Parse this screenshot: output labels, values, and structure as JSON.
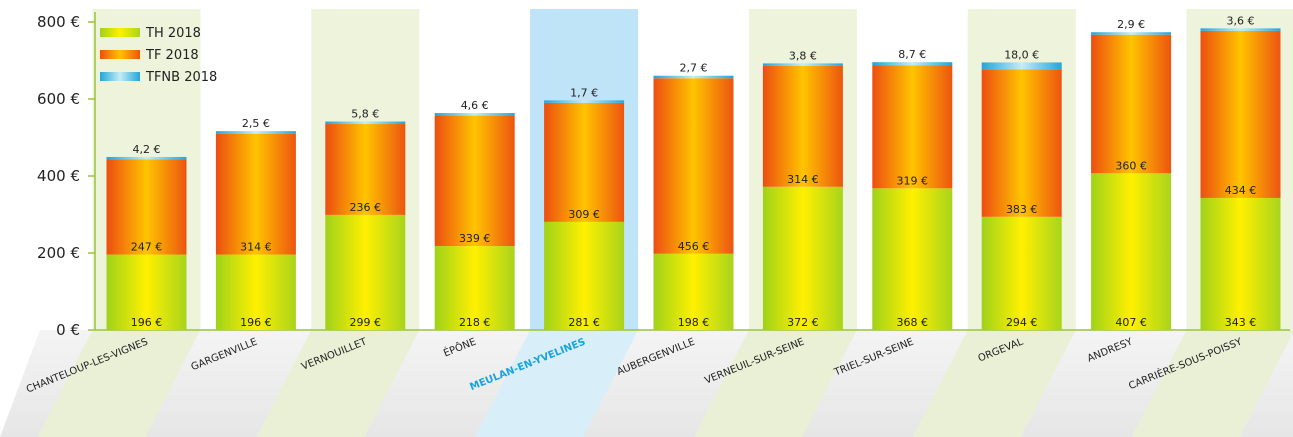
{
  "chart_data": {
    "type": "bar",
    "stacked": true,
    "categories": [
      "CHANTELOUP-LES-VIGNES",
      "GARGENVILLE",
      "VERNOUILLET",
      "ÉPÔNE",
      "MEULAN-EN-YVELINES",
      "AUBERGENVILLE",
      "VERNEUIL-SUR-SEINE",
      "TRIEL-SUR-SEINE",
      "ORGEVAL",
      "ANDRESY",
      "CARRIÈRE-SOUS-POISSY"
    ],
    "highlight_category": "MEULAN-EN-YVELINES",
    "series": [
      {
        "name": "TH 2018",
        "values": [
          196,
          196,
          299,
          218,
          281,
          198,
          372,
          368,
          294,
          407,
          343
        ],
        "labels": [
          "196 €",
          "196 €",
          "299 €",
          "218 €",
          "281 €",
          "198 €",
          "372 €",
          "368 €",
          "294 €",
          "407 €",
          "343 €"
        ]
      },
      {
        "name": "TF 2018",
        "values": [
          247,
          314,
          236,
          339,
          309,
          456,
          314,
          319,
          383,
          360,
          434
        ],
        "labels": [
          "247 €",
          "314 €",
          "236 €",
          "339 €",
          "309 €",
          "456 €",
          "314 €",
          "319 €",
          "383 €",
          "360 €",
          "434 €"
        ]
      },
      {
        "name": "TFNB 2018",
        "values": [
          4.2,
          2.5,
          5.8,
          4.6,
          1.7,
          2.7,
          3.8,
          8.7,
          18.0,
          2.9,
          3.6
        ],
        "labels": [
          "4,2 €",
          "2,5 €",
          "5,8 €",
          "4,6 €",
          "1,7 €",
          "2,7 €",
          "3,8 €",
          "8,7 €",
          "18,0 €",
          "2,9 €",
          "3,6 €"
        ]
      }
    ],
    "y_ticks": [
      0,
      200,
      400,
      600,
      800
    ],
    "y_tick_labels": [
      "0 €",
      "200 €",
      "400 €",
      "600 €",
      "800 €"
    ],
    "ylim": [
      0,
      830
    ],
    "legend_position": "top-left",
    "grid": false,
    "colors": {
      "th": [
        "#9fd21a",
        "#ffe600"
      ],
      "tf": [
        "#ee5a12",
        "#ffc200"
      ],
      "tfnb": [
        "#2aa9d9",
        "#b8e6f3"
      ],
      "band_alt": "#eef3dc",
      "band_highlight": "#bfe3f7",
      "highlight_text": "#1aa3e0"
    }
  }
}
